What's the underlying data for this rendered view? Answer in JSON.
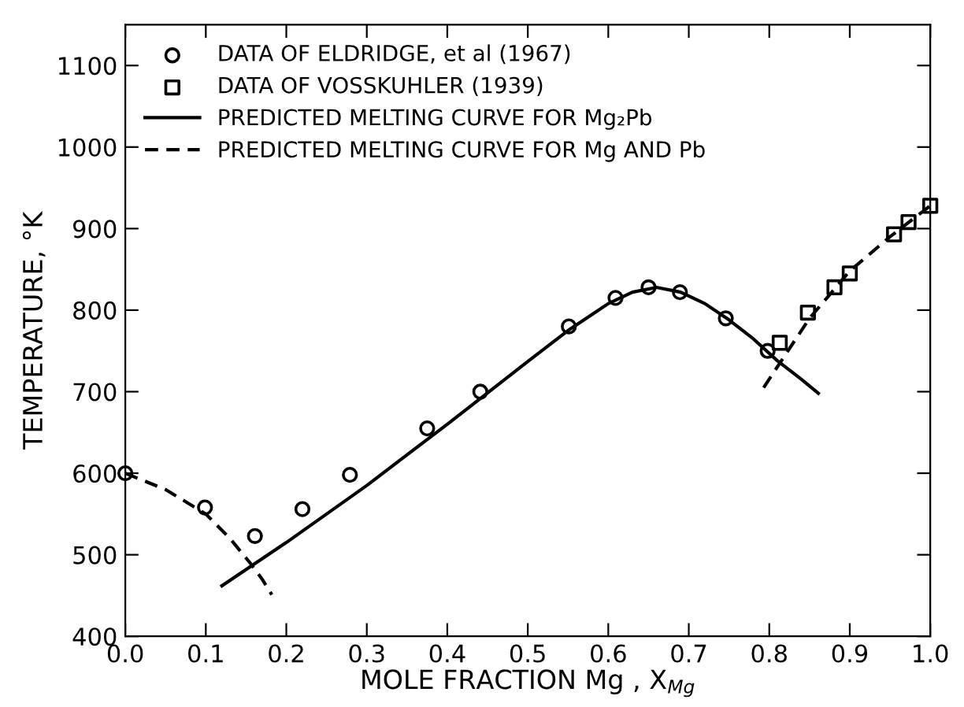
{
  "chart_data": {
    "type": "scatter",
    "xlabel": "MOLE FRACTION Mg , X$_{Mg}$",
    "ylabel": "TEMPERATURE, °K",
    "xlim": [
      0.0,
      1.0
    ],
    "ylim": [
      400,
      1150
    ],
    "xticks": [
      {
        "value": 0.0,
        "label": "0.0"
      },
      {
        "value": 0.1,
        "label": "0.1"
      },
      {
        "value": 0.2,
        "label": "0.2"
      },
      {
        "value": 0.3,
        "label": "0.3"
      },
      {
        "value": 0.4,
        "label": "0.4"
      },
      {
        "value": 0.5,
        "label": "0.5"
      },
      {
        "value": 0.6,
        "label": "0.6"
      },
      {
        "value": 0.7,
        "label": "0.7"
      },
      {
        "value": 0.8,
        "label": "0.8"
      },
      {
        "value": 0.9,
        "label": "0.9"
      },
      {
        "value": 1.0,
        "label": "1.0"
      }
    ],
    "yticks": [
      400,
      500,
      600,
      700,
      800,
      900,
      1000,
      1100
    ],
    "grid": false,
    "legend": "top left",
    "series": [
      {
        "name": "DATA OF ELDRIDGE, et al (1967)",
        "marker": "circle",
        "color": "#000000",
        "x": [
          0.0,
          0.099,
          0.161,
          0.22,
          0.279,
          0.375,
          0.441,
          0.551,
          0.609,
          0.65,
          0.689,
          0.746,
          0.798
        ],
        "values": [
          600,
          558,
          523,
          556,
          598,
          655,
          700,
          780,
          815,
          828,
          822,
          790,
          750
        ]
      },
      {
        "name": "DATA OF VOSSKUHLER (1939)",
        "marker": "square",
        "color": "#000000",
        "x": [
          0.813,
          0.848,
          0.881,
          0.9,
          0.955,
          0.973,
          1.0
        ],
        "values": [
          760,
          797,
          828,
          845,
          893,
          908,
          928
        ]
      },
      {
        "name": "PREDICTED MELTING CURVE FOR Mg₂Pb",
        "type": "line",
        "line_style": "solid",
        "marker": "none",
        "color": "#000000",
        "x": [
          0.12,
          0.2,
          0.3,
          0.4,
          0.5,
          0.55,
          0.6,
          0.63,
          0.66,
          0.69,
          0.72,
          0.75,
          0.78,
          0.81,
          0.84,
          0.861
        ],
        "values": [
          462,
          515,
          585,
          660,
          737,
          775,
          808,
          822,
          828,
          822,
          808,
          788,
          765,
          738,
          715,
          698
        ]
      },
      {
        "name": "PREDICTED MELTING CURVE FOR Mg AND Pb",
        "type": "line",
        "line_style": "dashed",
        "marker": "none",
        "color": "#000000",
        "x": [
          0.0,
          0.05,
          0.1,
          0.13,
          0.155,
          0.17,
          0.182
        ],
        "values": [
          600,
          580,
          550,
          520,
          490,
          470,
          451
        ]
      },
      {
        "type": "line",
        "line_style": "dashed",
        "marker": "none",
        "color": "#000000",
        "x": [
          0.793,
          0.85,
          0.9,
          0.95,
          1.0
        ],
        "values": [
          705,
          790,
          848,
          890,
          928
        ]
      }
    ]
  }
}
